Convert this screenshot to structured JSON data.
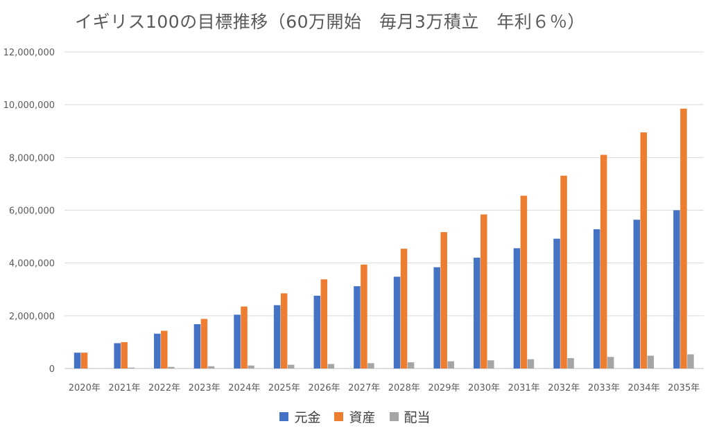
{
  "chart_data": {
    "type": "bar",
    "title": "イギリス100の目標推移（60万開始　毎月3万積立　年利６％）",
    "categories": [
      "2020年",
      "2021年",
      "2022年",
      "2023年",
      "2024年",
      "2025年",
      "2026年",
      "2027年",
      "2028年",
      "2029年",
      "2030年",
      "2031年",
      "2032年",
      "2033年",
      "2034年",
      "2035年"
    ],
    "ylim": [
      0,
      12000000
    ],
    "yticks": [
      0,
      2000000,
      4000000,
      6000000,
      8000000,
      10000000,
      12000000
    ],
    "ytick_labels": [
      "0",
      "2,000,000",
      "4,000,000",
      "6,000,000",
      "8,000,000",
      "10,000,000",
      "12,000,000"
    ],
    "grid": true,
    "legend_position": "bottom",
    "series": [
      {
        "name": "元金",
        "color": "#4472C4",
        "values": [
          600000,
          960000,
          1320000,
          1680000,
          2040000,
          2400000,
          2760000,
          3120000,
          3480000,
          3840000,
          4200000,
          4560000,
          4920000,
          5280000,
          5640000,
          6000000
        ]
      },
      {
        "name": "資産",
        "color": "#ED7D31",
        "values": [
          600000,
          1000000,
          1430000,
          1880000,
          2350000,
          2850000,
          3380000,
          3940000,
          4540000,
          5170000,
          5840000,
          6550000,
          7310000,
          8100000,
          8950000,
          9850000
        ]
      },
      {
        "name": "配当",
        "color": "#A5A5A5",
        "values": [
          0,
          36000,
          60000,
          86000,
          113000,
          141000,
          171000,
          203000,
          236000,
          272000,
          310000,
          350000,
          393000,
          439000,
          487000,
          538000
        ]
      }
    ]
  }
}
